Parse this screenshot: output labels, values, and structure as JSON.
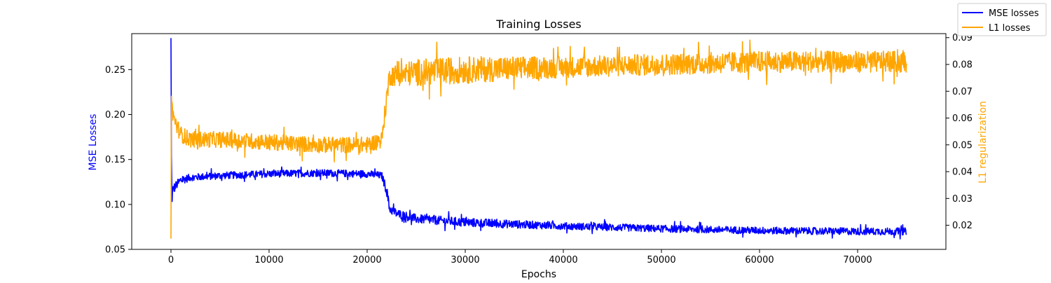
{
  "chart_data": {
    "type": "line",
    "title": "Training Losses",
    "xlabel": "Epochs",
    "ylabel_left": "MSE Losses",
    "ylabel_right": "L1 regularization",
    "xlim": [
      -4000,
      79000
    ],
    "ylim_left": [
      0.05,
      0.29
    ],
    "ylim_right": [
      0.011,
      0.0915
    ],
    "x_ticks": [
      0,
      10000,
      20000,
      30000,
      40000,
      50000,
      60000,
      70000
    ],
    "x_tick_labels": [
      "0",
      "10000",
      "20000",
      "30000",
      "40000",
      "50000",
      "60000",
      "70000"
    ],
    "y_left_ticks": [
      0.05,
      0.1,
      0.15,
      0.2,
      0.25
    ],
    "y_left_tick_labels": [
      "0.05",
      "0.10",
      "0.15",
      "0.20",
      "0.25"
    ],
    "y_right_ticks": [
      0.02,
      0.03,
      0.04,
      0.05,
      0.06,
      0.07,
      0.08,
      0.09
    ],
    "y_right_tick_labels": [
      "0.02",
      "0.03",
      "0.04",
      "0.05",
      "0.06",
      "0.07",
      "0.08",
      "0.09"
    ],
    "grid": false,
    "legend_location": "top-right (outside plot)",
    "series": [
      {
        "name": "MSE losses",
        "axis": "left",
        "color": "#0000ff",
        "x": [
          0,
          50,
          100,
          300,
          600,
          1000,
          2000,
          5000,
          10000,
          15000,
          20000,
          21500,
          22000,
          22300,
          23000,
          25000,
          30000,
          40000,
          50000,
          60000,
          70000,
          75000
        ],
        "y": [
          0.285,
          0.15,
          0.11,
          0.118,
          0.122,
          0.127,
          0.13,
          0.132,
          0.134,
          0.135,
          0.134,
          0.132,
          0.115,
          0.095,
          0.09,
          0.084,
          0.08,
          0.076,
          0.073,
          0.071,
          0.07,
          0.07
        ],
        "spread": [
          0.0,
          0.015,
          0.012,
          0.006,
          0.005,
          0.005,
          0.004,
          0.004,
          0.004,
          0.004,
          0.004,
          0.004,
          0.006,
          0.005,
          0.005,
          0.005,
          0.005,
          0.004,
          0.004,
          0.004,
          0.004,
          0.004
        ]
      },
      {
        "name": "L1 losses",
        "axis": "right",
        "color": "#ffa500",
        "x": [
          0,
          50,
          100,
          300,
          600,
          1000,
          2000,
          5000,
          10000,
          15000,
          20000,
          21500,
          22000,
          22300,
          23000,
          25000,
          30000,
          40000,
          50000,
          60000,
          70000,
          75000
        ],
        "y": [
          0.015,
          0.069,
          0.064,
          0.06,
          0.057,
          0.054,
          0.052,
          0.052,
          0.051,
          0.05,
          0.05,
          0.052,
          0.068,
          0.076,
          0.076,
          0.077,
          0.078,
          0.079,
          0.08,
          0.081,
          0.081,
          0.081
        ],
        "spread": [
          0.0,
          0.003,
          0.003,
          0.003,
          0.003,
          0.003,
          0.003,
          0.003,
          0.003,
          0.003,
          0.003,
          0.003,
          0.004,
          0.004,
          0.004,
          0.005,
          0.005,
          0.004,
          0.004,
          0.004,
          0.004,
          0.004
        ]
      }
    ]
  }
}
